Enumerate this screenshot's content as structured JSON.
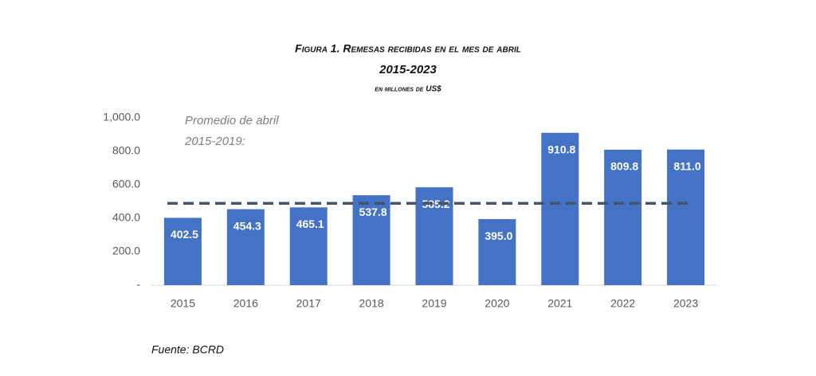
{
  "chart_data": {
    "type": "bar",
    "title": "Figura 1. Remesas recibidas en el mes de abril",
    "subtitle": "2015-2023",
    "y_label": "en millones de US$",
    "categories": [
      "2015",
      "2016",
      "2017",
      "2018",
      "2019",
      "2020",
      "2021",
      "2022",
      "2023"
    ],
    "values": [
      402.5,
      454.3,
      465.1,
      537.8,
      585.2,
      395.0,
      910.8,
      809.8,
      811.0
    ],
    "value_labels": [
      "402.5",
      "454.3",
      "465.1",
      "537.8",
      "585.2",
      "395.0",
      "910.8",
      "809.8",
      "811.0"
    ],
    "color": "#4472c4",
    "ylim": [
      0,
      1000
    ],
    "yticks": [
      {
        "value": 0,
        "label": "-"
      },
      {
        "value": 200,
        "label": "200.0"
      },
      {
        "value": 400,
        "label": "400.0"
      },
      {
        "value": 600,
        "label": "600.0"
      },
      {
        "value": 800,
        "label": "800.0"
      },
      {
        "value": 1000,
        "label": "1,000.0"
      }
    ],
    "average_line": {
      "value": 489,
      "label": [
        "Promedio de abril",
        "2015-2019:"
      ],
      "color": "#44546a"
    },
    "source": "Fuente: BCRD"
  }
}
